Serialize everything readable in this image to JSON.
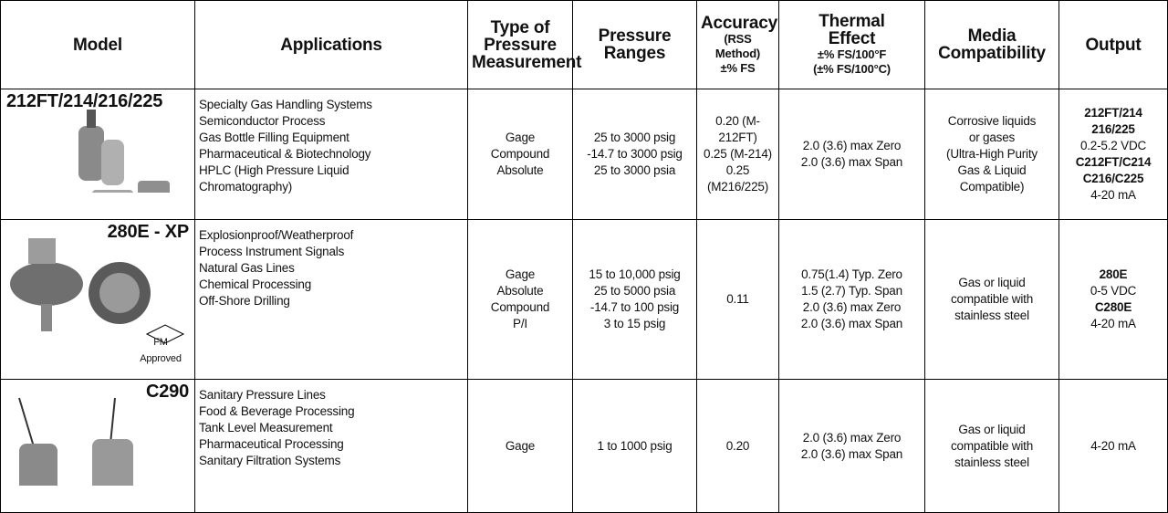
{
  "table": {
    "header": [
      [
        "Model"
      ],
      [
        "Applications"
      ],
      [
        "Type of",
        "Pressure",
        "Measurement"
      ],
      [
        "Pressure",
        "Ranges"
      ],
      [
        "Accuracy",
        {
          "small": "(RSS Method)"
        },
        {
          "small": "±% FS"
        }
      ],
      [
        "Thermal",
        "Effect",
        {
          "small": "±% FS/100°F"
        },
        {
          "small": "(±% FS/100°C)"
        }
      ],
      [
        "Media",
        "Compatibility"
      ],
      [
        "Output"
      ]
    ],
    "rows": [
      {
        "model": "212FT/214/216/225",
        "applications": [
          "Specialty Gas Handling Systems",
          "Semiconductor Process",
          "Gas Bottle Filling Equipment",
          "Pharmaceutical & Biotechnology",
          "HPLC (High Pressure Liquid",
          "Chromatography)"
        ],
        "measurement": [
          "Gage",
          "Compound",
          "Absolute"
        ],
        "ranges": [
          "25 to 3000 psig",
          "-14.7 to 3000 psig",
          "25 to 3000 psia"
        ],
        "accuracy": [
          "0.20 (M-212FT)",
          "0.25 (M-214)",
          "0.25 (M216/225)"
        ],
        "thermal": [
          "2.0 (3.6) max Zero",
          "2.0 (3.6) max Span"
        ],
        "media": [
          "Corrosive liquids",
          "or gases",
          "(Ultra-High Purity",
          "Gas & Liquid",
          "Compatible)"
        ],
        "output": [
          {
            "text": "212FT/214",
            "bold": true
          },
          {
            "text": "216/225",
            "bold": true
          },
          {
            "text": "0.2-5.2 VDC",
            "bold": false
          },
          {
            "text": "C212FT/C214",
            "bold": true
          },
          {
            "text": "C216/C225",
            "bold": true
          },
          {
            "text": "4-20 mA",
            "bold": false
          }
        ]
      },
      {
        "model": "280E - XP",
        "badge": "FM",
        "badge_note": "Approved",
        "applications": [
          "Explosionproof/Weatherproof",
          "Process Instrument Signals",
          "Natural Gas Lines",
          "Chemical Processing",
          "Off-Shore Drilling"
        ],
        "measurement": [
          "Gage",
          "Absolute",
          "Compound",
          "P/I"
        ],
        "ranges": [
          "15 to 10,000 psig",
          "25 to 5000 psia",
          "-14.7 to 100 psig",
          "3 to 15 psig"
        ],
        "accuracy": [
          "0.11"
        ],
        "thermal": [
          "0.75(1.4) Typ. Zero",
          "1.5 (2.7) Typ. Span",
          "2.0 (3.6) max Zero",
          "2.0 (3.6) max Span"
        ],
        "media": [
          "Gas or liquid",
          "compatible with",
          "stainless steel"
        ],
        "output": [
          {
            "text": "280E",
            "bold": true
          },
          {
            "text": "0-5 VDC",
            "bold": false
          },
          {
            "text": "C280E",
            "bold": true
          },
          {
            "text": "4-20 mA",
            "bold": false
          }
        ]
      },
      {
        "model": "C290",
        "applications": [
          "Sanitary Pressure Lines",
          "Food & Beverage Processing",
          "Tank Level Measurement",
          "Pharmaceutical Processing",
          "Sanitary Filtration Systems"
        ],
        "measurement": [
          "Gage"
        ],
        "ranges": [
          "1 to 1000 psig"
        ],
        "accuracy": [
          "0.20"
        ],
        "thermal": [
          "2.0 (3.6) max Zero",
          "2.0 (3.6) max Span"
        ],
        "media": [
          "Gas or liquid",
          "compatible with",
          "stainless steel"
        ],
        "output": [
          {
            "text": "4-20 mA",
            "bold": false
          }
        ]
      }
    ]
  }
}
